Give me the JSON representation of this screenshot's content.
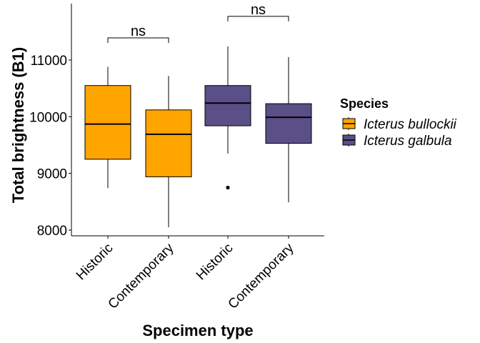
{
  "chart_data": {
    "type": "boxplot",
    "xlabel": "Specimen type",
    "ylabel": "Total brightness (B1)",
    "ylim": [
      7850,
      12000
    ],
    "yticks": [
      8000,
      9000,
      10000,
      11000
    ],
    "ytick_labels": [
      "8000",
      "9000",
      "10000",
      "11000"
    ],
    "categories": [
      "Historic",
      "Contemporary",
      "Historic",
      "Contemporary"
    ],
    "legend": {
      "title": "Species",
      "position": "right",
      "entries": [
        {
          "label": "Icterus bullockii",
          "color": "#FFA500"
        },
        {
          "label": "Icterus galbula",
          "color": "#5B4F87"
        }
      ]
    },
    "boxes": [
      {
        "category": "Historic",
        "species": "Icterus bullockii",
        "color": "#FFA500",
        "min": 8740,
        "q1": 9250,
        "median": 9870,
        "q3": 10550,
        "max": 10880,
        "outliers": []
      },
      {
        "category": "Contemporary",
        "species": "Icterus bullockii",
        "color": "#FFA500",
        "min": 8050,
        "q1": 8940,
        "median": 9690,
        "q3": 10120,
        "max": 10720,
        "outliers": []
      },
      {
        "category": "Historic",
        "species": "Icterus galbula",
        "color": "#5B4F87",
        "min": 9350,
        "q1": 9840,
        "median": 10240,
        "q3": 10550,
        "max": 11240,
        "outliers": [
          8750
        ]
      },
      {
        "category": "Contemporary",
        "species": "Icterus galbula",
        "color": "#5B4F87",
        "min": 8490,
        "q1": 9530,
        "median": 9990,
        "q3": 10230,
        "max": 11050,
        "outliers": []
      }
    ],
    "annotations": [
      {
        "text": "ns",
        "from": 0,
        "to": 1,
        "y": 11390
      },
      {
        "text": "ns",
        "from": 2,
        "to": 3,
        "y": 11770
      }
    ]
  }
}
